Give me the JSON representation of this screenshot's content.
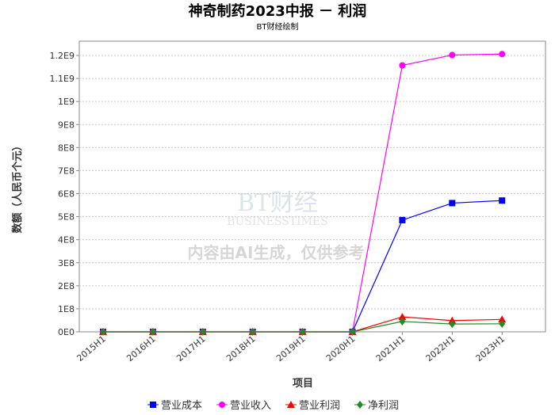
{
  "chart_data": {
    "type": "line",
    "title": "神奇制药2023中报 － 利润",
    "subtitle": "BT财经绘制",
    "xlabel": "项目",
    "ylabel": "数额（人民币个元）",
    "ylim": [
      0,
      1200000000
    ],
    "yticks": [
      0,
      100000000,
      200000000,
      300000000,
      400000000,
      500000000,
      600000000,
      700000000,
      800000000,
      900000000,
      1000000000,
      1100000000,
      1200000000
    ],
    "ytick_labels": [
      "0E0",
      "1E8",
      "2E8",
      "3E8",
      "4E8",
      "5E8",
      "6E8",
      "7E8",
      "8E8",
      "9E8",
      "1E9",
      "1.1E9",
      "1.2E9"
    ],
    "categories": [
      "2015H1",
      "2016H1",
      "2017H1",
      "2018H1",
      "2019H1",
      "2020H1",
      "2021H1",
      "2022H1",
      "2023H1"
    ],
    "grid": true,
    "legend": "bottom",
    "series": [
      {
        "name": "营业成本",
        "color": "#0000ff",
        "marker": "square",
        "values": [
          0,
          0,
          0,
          0,
          0,
          0,
          485000000,
          559000000,
          570000000
        ]
      },
      {
        "name": "营业收入",
        "color": "#ff00ff",
        "marker": "circle",
        "values": [
          0,
          0,
          0,
          0,
          0,
          0,
          1157000000,
          1202000000,
          1206000000
        ]
      },
      {
        "name": "营业利润",
        "color": "#ff0000",
        "marker": "triangle",
        "values": [
          0,
          0,
          0,
          0,
          0,
          0,
          65000000,
          49000000,
          54000000
        ]
      },
      {
        "name": "净利润",
        "color": "#228b22",
        "marker": "diamond",
        "values": [
          0,
          0,
          0,
          0,
          0,
          0,
          45000000,
          34000000,
          35000000
        ]
      }
    ],
    "watermark": {
      "brand": "BT财经",
      "brand_en": "BUSINESSTIMES",
      "note": "内容由AI生成，仅供参考"
    }
  }
}
